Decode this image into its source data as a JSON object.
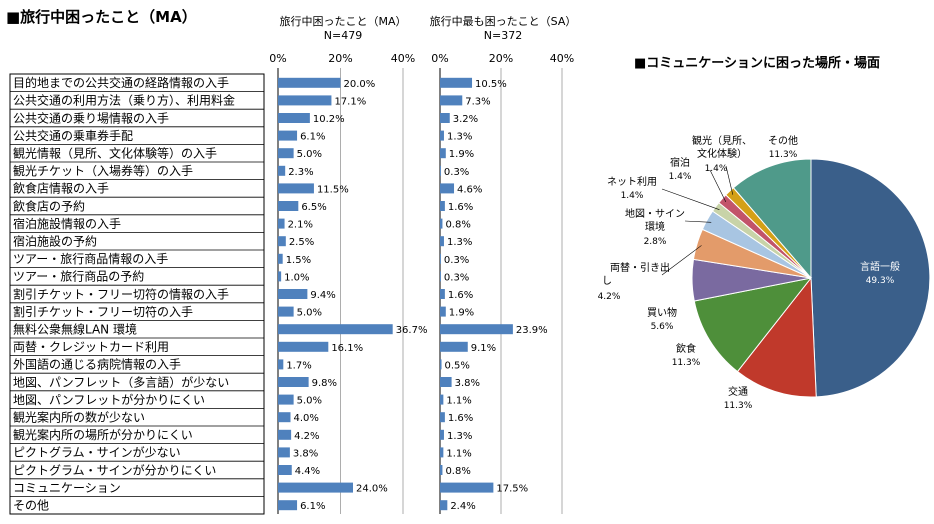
{
  "page_title": "■旅行中困ったこと（MA）",
  "chart_data": [
    {
      "type": "bar",
      "orientation": "horizontal",
      "title": "旅行中困ったこと（MA）",
      "subtitle": "N=479",
      "xlim": [
        0,
        40
      ],
      "x_ticks": [
        "0%",
        "20%",
        "40%"
      ],
      "grid": true,
      "categories": [
        "目的地までの公共交通の経路情報の入手",
        "公共交通の利用方法（乗り方）、利用料金",
        "公共交通の乗り場情報の入手",
        "公共交通の乗車券手配",
        "観光情報（見所、文化体験等）の入手",
        "観光チケット（入場券等）の入手",
        "飲食店情報の入手",
        "飲食店の予約",
        "宿泊施設情報の入手",
        "宿泊施設の予約",
        "ツアー・旅行商品情報の入手",
        "ツアー・旅行商品の予約",
        "割引チケット・フリー切符の情報の入手",
        "割引チケット・フリー切符の入手",
        "無料公衆無線LAN 環境",
        "両替・クレジットカード利用",
        "外国語の通じる病院情報の入手",
        "地図、パンフレット（多言語）が少ない",
        "地図、パンフレットが分かりにくい",
        "観光案内所の数が少ない",
        "観光案内所の場所が分かりにくい",
        "ピクトグラム・サインが少ない",
        "ピクトグラム・サインが分かりにくい",
        "コミュニケーション",
        "その他"
      ],
      "values": [
        20.0,
        17.1,
        10.2,
        6.1,
        5.0,
        2.3,
        11.5,
        6.5,
        2.1,
        2.5,
        1.5,
        1.0,
        9.4,
        5.0,
        36.7,
        16.1,
        1.7,
        9.8,
        5.0,
        4.0,
        4.2,
        3.8,
        4.4,
        24.0,
        6.1
      ],
      "value_labels": [
        "20.0%",
        "17.1%",
        "10.2%",
        "6.1%",
        "5.0%",
        "2.3%",
        "11.5%",
        "6.5%",
        "2.1%",
        "2.5%",
        "1.5%",
        "1.0%",
        "9.4%",
        "5.0%",
        "36.7%",
        "16.1%",
        "1.7%",
        "9.8%",
        "5.0%",
        "4.0%",
        "4.2%",
        "3.8%",
        "4.4%",
        "24.0%",
        "6.1%"
      ],
      "color": "#4f81bd"
    },
    {
      "type": "bar",
      "orientation": "horizontal",
      "title": "旅行中最も困ったこと（SA）",
      "subtitle": "N=372",
      "xlim": [
        0,
        40
      ],
      "x_ticks": [
        "0%",
        "20%",
        "40%"
      ],
      "grid": true,
      "values": [
        10.5,
        7.3,
        3.2,
        1.3,
        1.9,
        0.3,
        4.6,
        1.6,
        0.8,
        1.3,
        0.3,
        0.3,
        1.6,
        1.9,
        23.9,
        9.1,
        0.5,
        3.8,
        1.1,
        1.6,
        1.3,
        1.1,
        0.8,
        17.5,
        2.4
      ],
      "value_labels": [
        "10.5%",
        "7.3%",
        "3.2%",
        "1.3%",
        "1.9%",
        "0.3%",
        "4.6%",
        "1.6%",
        "0.8%",
        "1.3%",
        "0.3%",
        "0.3%",
        "1.6%",
        "1.9%",
        "23.9%",
        "9.1%",
        "0.5%",
        "3.8%",
        "1.1%",
        "1.6%",
        "1.3%",
        "1.1%",
        "0.8%",
        "17.5%",
        "2.4%"
      ],
      "color": "#4f81bd"
    },
    {
      "type": "pie",
      "title": "■コミュニケーションに困った場所・場面",
      "slices": [
        {
          "label": "言語一般",
          "value": 49.3,
          "value_label": "49.3%",
          "color": "#3a5f8a"
        },
        {
          "label": "交通",
          "value": 11.3,
          "value_label": "11.3%",
          "color": "#c0392b"
        },
        {
          "label": "飲食",
          "value": 11.3,
          "value_label": "11.3%",
          "color": "#4e8f3a"
        },
        {
          "label": "買い物",
          "value": 5.6,
          "value_label": "5.6%",
          "color": "#7a6aa0"
        },
        {
          "label": "両替・引き出し",
          "value": 4.2,
          "value_label": "4.2%",
          "color": "#e39b6a"
        },
        {
          "label": "地図・サイン環境",
          "value": 2.8,
          "value_label": "2.8%",
          "color": "#a8c5e2"
        },
        {
          "label": "ネット利用",
          "value": 1.4,
          "value_label": "1.4%",
          "color": "#c8d3a8"
        },
        {
          "label": "宿泊",
          "value": 1.4,
          "value_label": "1.4%",
          "color": "#c2546a"
        },
        {
          "label": "観光（見所、文化体験）",
          "value": 1.4,
          "value_label": "1.4%",
          "color": "#d4a017"
        },
        {
          "label": "その他",
          "value": 11.3,
          "value_label": "11.3%",
          "color": "#4f9a8a"
        }
      ]
    }
  ]
}
